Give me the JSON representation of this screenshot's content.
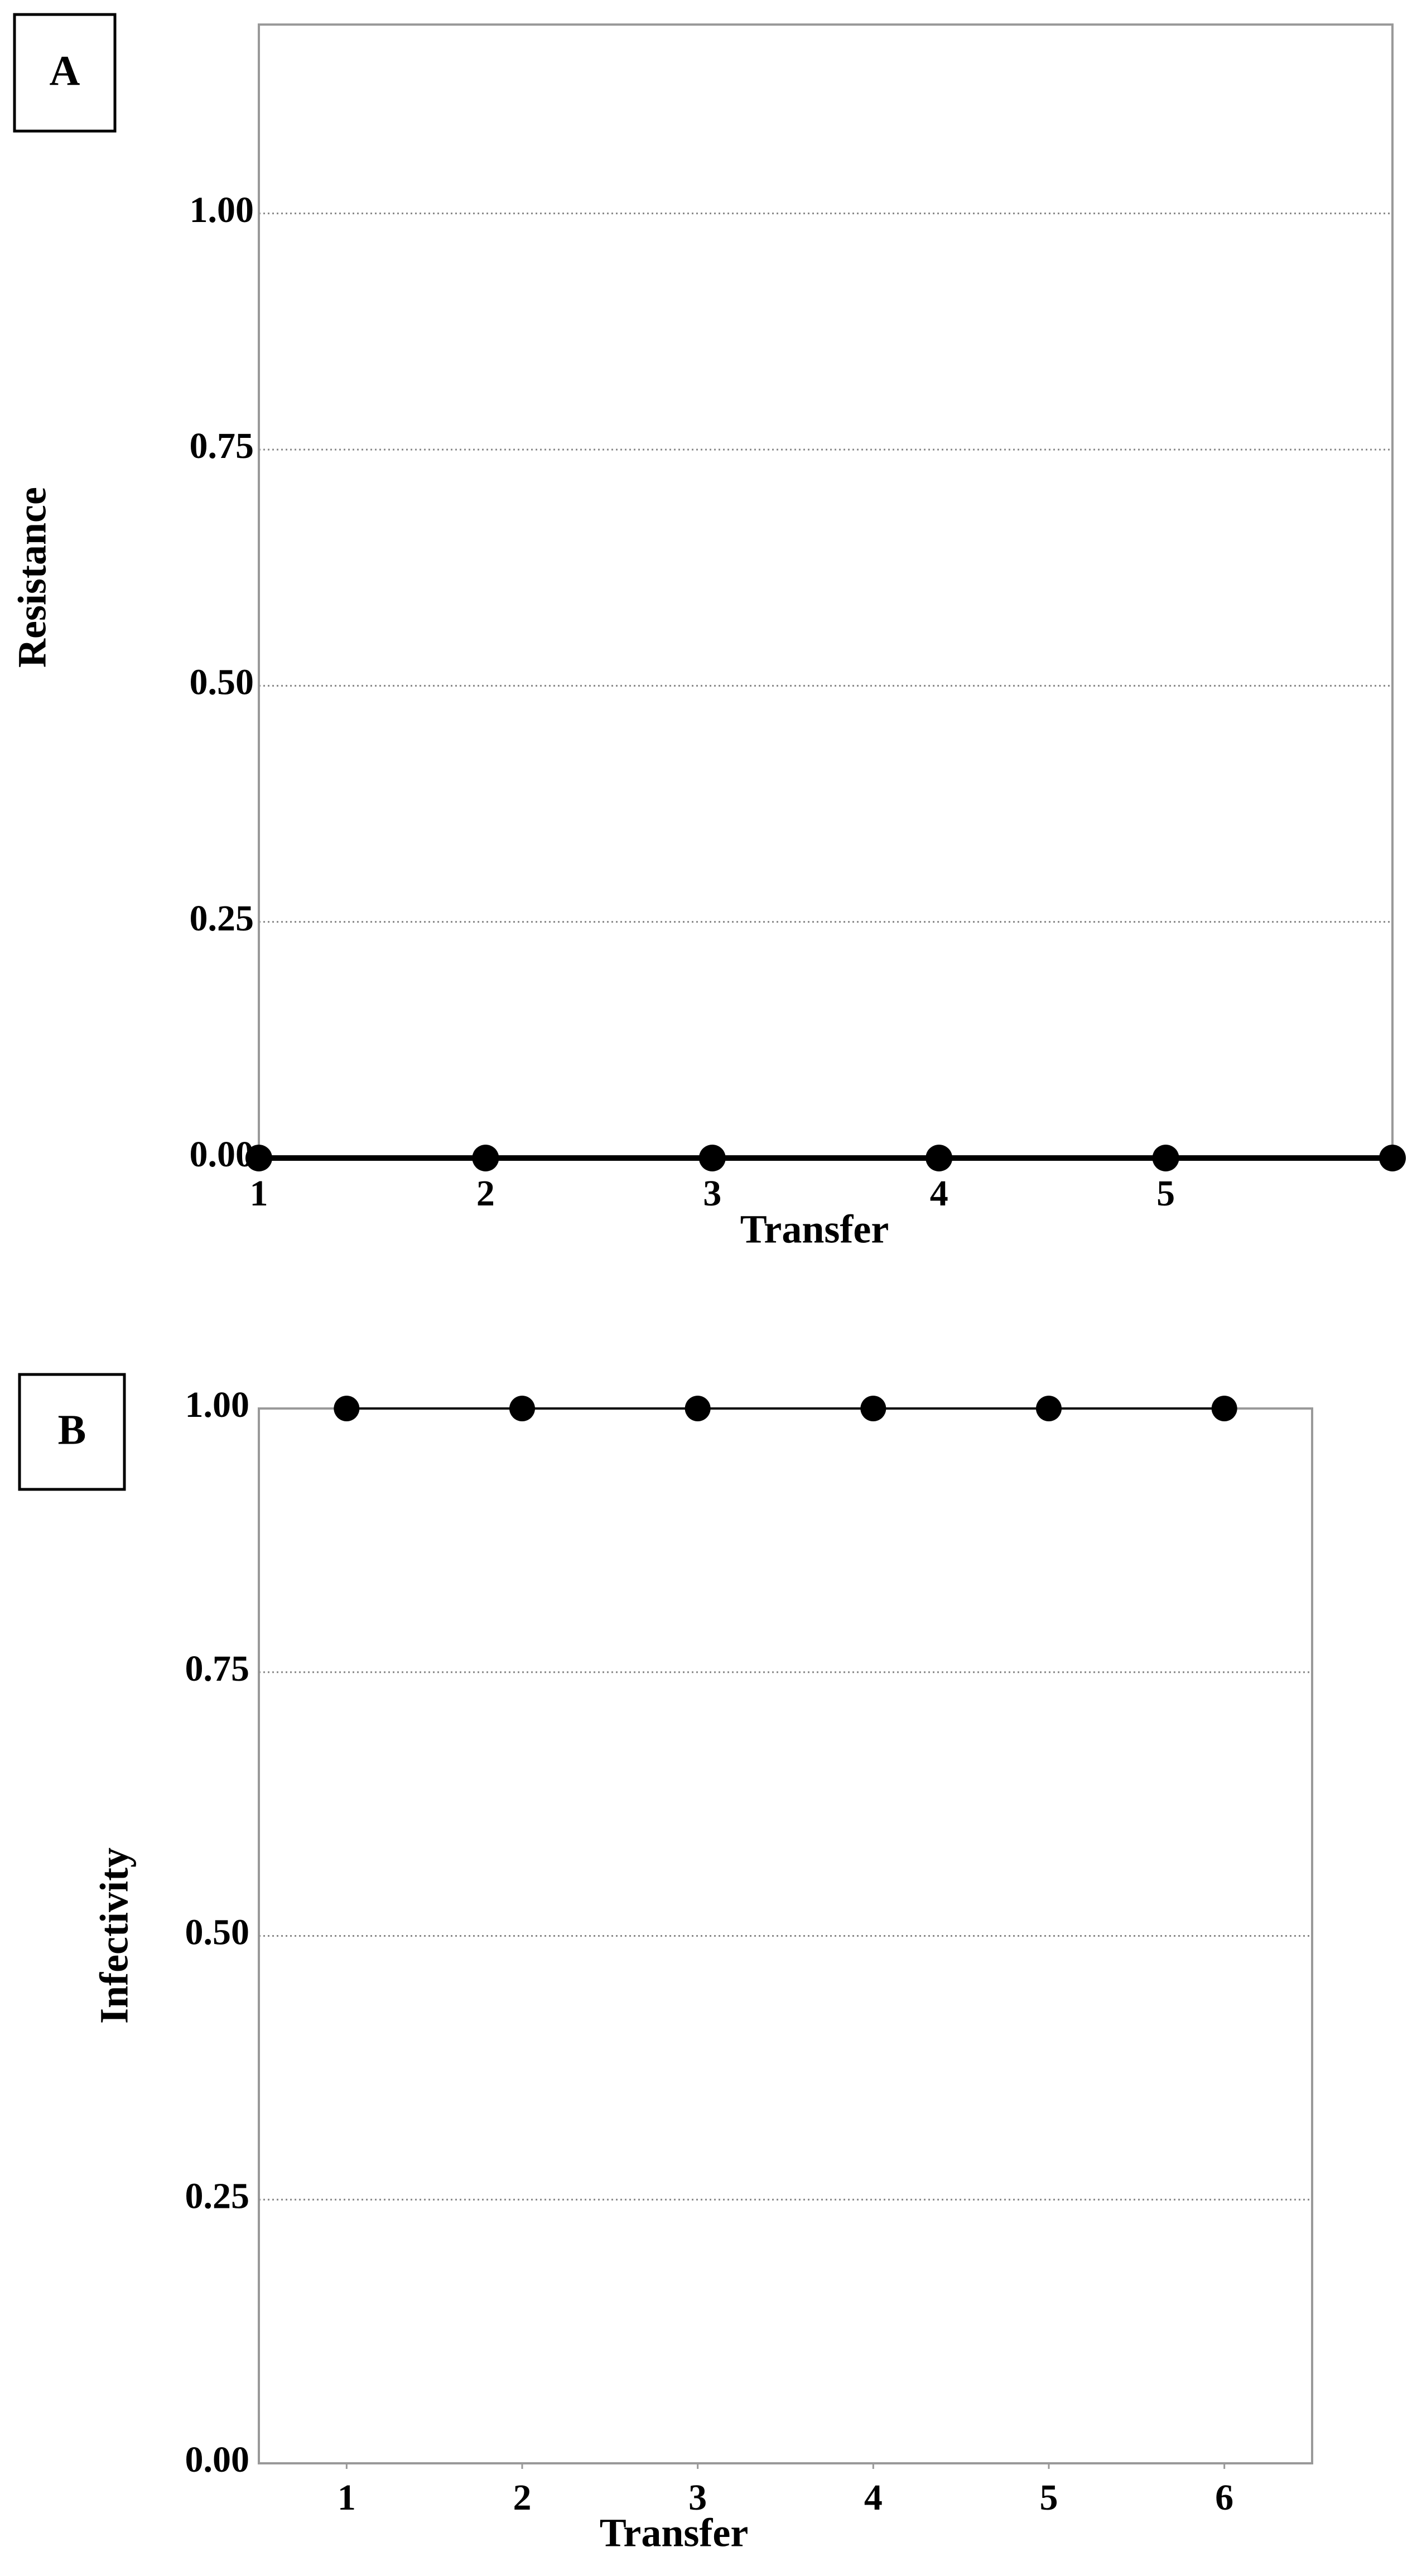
{
  "chart_data": [
    {
      "type": "line",
      "panel_label": "A",
      "xlabel": "Transfer",
      "ylabel": "Resistance",
      "x": [
        1,
        2,
        3,
        4,
        5,
        6
      ],
      "values": [
        0,
        0,
        0,
        0,
        0,
        0
      ],
      "color": "#000000",
      "xlim": [
        1,
        6
      ],
      "xticks": [
        1,
        2,
        3,
        4,
        5
      ],
      "ylim": [
        0,
        1.2
      ],
      "yticks": [
        {
          "value": 0,
          "label": "0.00"
        },
        {
          "value": 0.25,
          "label": "0.25"
        },
        {
          "value": 0.5,
          "label": "0.50"
        },
        {
          "value": 0.75,
          "label": "0.75"
        },
        {
          "value": 1,
          "label": "1.00"
        }
      ],
      "grid": true
    },
    {
      "type": "line",
      "panel_label": "B",
      "xlabel": "Transfer",
      "ylabel": "Infectivity",
      "x": [
        1,
        2,
        3,
        4,
        5,
        6
      ],
      "values": [
        1,
        1,
        1,
        1,
        1,
        1
      ],
      "color": "#000000",
      "xlim": [
        0.5,
        6.5
      ],
      "xticks": [
        1,
        2,
        3,
        4,
        5,
        6
      ],
      "ylim": [
        0,
        1
      ],
      "yticks": [
        {
          "value": 0,
          "label": "0.00"
        },
        {
          "value": 0.25,
          "label": "0.25"
        },
        {
          "value": 0.5,
          "label": "0.50"
        },
        {
          "value": 0.75,
          "label": "0.75"
        },
        {
          "value": 1,
          "label": "1.00"
        }
      ],
      "grid": true
    }
  ]
}
